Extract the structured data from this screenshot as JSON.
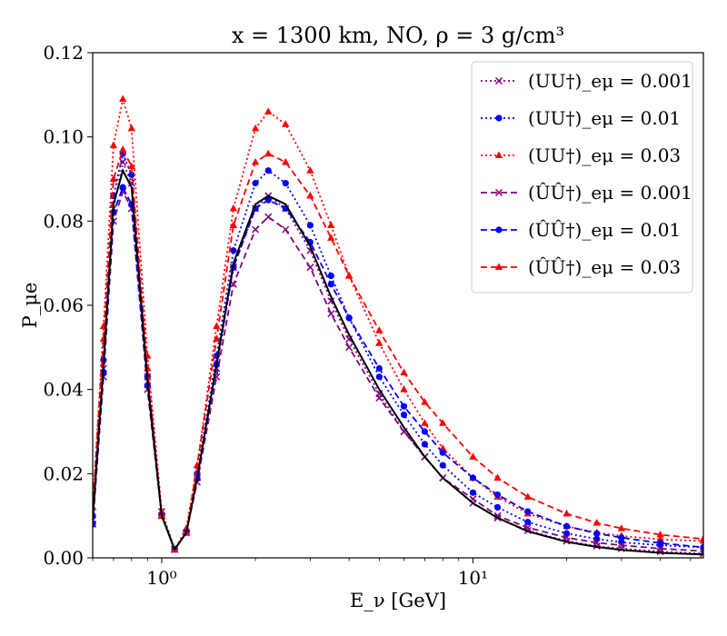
{
  "chart_data": {
    "type": "line",
    "title": "x = 1300 km, NO, ρ = 3 g/cm³",
    "xlabel": "E_ν [GeV]",
    "ylabel": "P_μe",
    "xscale": "log",
    "xlim": [
      0.6,
      55
    ],
    "ylim": [
      0,
      0.12
    ],
    "yticks": [
      0.0,
      0.02,
      0.04,
      0.06,
      0.08,
      0.1,
      0.12
    ],
    "ytick_labels": [
      "0.00",
      "0.02",
      "0.04",
      "0.06",
      "0.08",
      "0.10",
      "0.12"
    ],
    "xticks": [
      1,
      10
    ],
    "xtick_labels": [
      "10⁰",
      "10¹"
    ],
    "grid": false,
    "legend_position": "top-right",
    "colors": {
      "purple": "#800080",
      "blue": "#0000ff",
      "red": "#ff0000",
      "black": "#000000"
    },
    "series": [
      {
        "name": "(UU†)_eμ = 0.001",
        "color": "#800080",
        "linestyle": "dotted",
        "marker": "x",
        "points": [
          [
            0.6,
            0.009
          ],
          [
            0.65,
            0.045
          ],
          [
            0.7,
            0.083
          ],
          [
            0.75,
            0.094
          ],
          [
            0.8,
            0.089
          ],
          [
            0.9,
            0.043
          ],
          [
            1.0,
            0.011
          ],
          [
            1.1,
            0.002
          ],
          [
            1.2,
            0.006
          ],
          [
            1.3,
            0.019
          ],
          [
            1.5,
            0.045
          ],
          [
            1.7,
            0.069
          ],
          [
            2.0,
            0.083
          ],
          [
            2.2,
            0.086
          ],
          [
            2.5,
            0.083
          ],
          [
            3.0,
            0.073
          ],
          [
            3.5,
            0.061
          ],
          [
            4.0,
            0.052
          ],
          [
            5.0,
            0.039
          ],
          [
            6.0,
            0.03
          ],
          [
            7.0,
            0.024
          ],
          [
            8.0,
            0.019
          ],
          [
            10.0,
            0.013
          ],
          [
            12.0,
            0.0095
          ],
          [
            15.0,
            0.0065
          ],
          [
            20.0,
            0.004
          ],
          [
            25.0,
            0.0028
          ],
          [
            30.0,
            0.0022
          ],
          [
            40.0,
            0.0015
          ],
          [
            55.0,
            0.001
          ]
        ]
      },
      {
        "name": "(UU†)_eμ = 0.01",
        "color": "#0000ff",
        "linestyle": "dotted",
        "marker": "o",
        "points": [
          [
            0.6,
            0.01
          ],
          [
            0.65,
            0.047
          ],
          [
            0.7,
            0.086
          ],
          [
            0.75,
            0.096
          ],
          [
            0.8,
            0.091
          ],
          [
            0.9,
            0.043
          ],
          [
            1.0,
            0.01
          ],
          [
            1.1,
            0.002
          ],
          [
            1.2,
            0.006
          ],
          [
            1.3,
            0.02
          ],
          [
            1.5,
            0.048
          ],
          [
            1.7,
            0.073
          ],
          [
            2.0,
            0.089
          ],
          [
            2.2,
            0.092
          ],
          [
            2.5,
            0.089
          ],
          [
            3.0,
            0.079
          ],
          [
            3.5,
            0.067
          ],
          [
            4.0,
            0.057
          ],
          [
            5.0,
            0.043
          ],
          [
            6.0,
            0.034
          ],
          [
            7.0,
            0.027
          ],
          [
            8.0,
            0.022
          ],
          [
            10.0,
            0.0155
          ],
          [
            12.0,
            0.012
          ],
          [
            15.0,
            0.0085
          ],
          [
            20.0,
            0.0058
          ],
          [
            25.0,
            0.0045
          ],
          [
            30.0,
            0.0037
          ],
          [
            40.0,
            0.003
          ],
          [
            55.0,
            0.0025
          ]
        ]
      },
      {
        "name": "(UU†)_eμ = 0.03",
        "color": "#ff0000",
        "linestyle": "dotted",
        "marker": "^",
        "points": [
          [
            0.6,
            0.012
          ],
          [
            0.65,
            0.055
          ],
          [
            0.7,
            0.098
          ],
          [
            0.75,
            0.109
          ],
          [
            0.8,
            0.102
          ],
          [
            0.9,
            0.048
          ],
          [
            1.0,
            0.011
          ],
          [
            1.1,
            0.002
          ],
          [
            1.2,
            0.007
          ],
          [
            1.3,
            0.022
          ],
          [
            1.5,
            0.055
          ],
          [
            1.7,
            0.083
          ],
          [
            2.0,
            0.102
          ],
          [
            2.2,
            0.106
          ],
          [
            2.5,
            0.103
          ],
          [
            3.0,
            0.092
          ],
          [
            3.5,
            0.079
          ],
          [
            4.0,
            0.067
          ],
          [
            5.0,
            0.051
          ],
          [
            6.0,
            0.04
          ],
          [
            7.0,
            0.032
          ],
          [
            8.0,
            0.026
          ],
          [
            10.0,
            0.019
          ],
          [
            12.0,
            0.0145
          ],
          [
            15.0,
            0.0105
          ],
          [
            20.0,
            0.0075
          ],
          [
            25.0,
            0.006
          ],
          [
            30.0,
            0.0052
          ],
          [
            40.0,
            0.0044
          ],
          [
            55.0,
            0.004
          ]
        ]
      },
      {
        "name": "(ÛÛ†)_eμ = 0.001",
        "color": "#800080",
        "linestyle": "dashed",
        "marker": "x",
        "points": [
          [
            0.6,
            0.008
          ],
          [
            0.65,
            0.043
          ],
          [
            0.7,
            0.08
          ],
          [
            0.75,
            0.087
          ],
          [
            0.8,
            0.083
          ],
          [
            0.9,
            0.04
          ],
          [
            1.0,
            0.01
          ],
          [
            1.1,
            0.002
          ],
          [
            1.2,
            0.006
          ],
          [
            1.3,
            0.018
          ],
          [
            1.5,
            0.043
          ],
          [
            1.7,
            0.065
          ],
          [
            2.0,
            0.078
          ],
          [
            2.2,
            0.081
          ],
          [
            2.5,
            0.078
          ],
          [
            3.0,
            0.069
          ],
          [
            3.5,
            0.058
          ],
          [
            4.0,
            0.05
          ],
          [
            5.0,
            0.038
          ],
          [
            6.0,
            0.03
          ],
          [
            7.0,
            0.024
          ],
          [
            8.0,
            0.019
          ],
          [
            10.0,
            0.014
          ],
          [
            12.0,
            0.01
          ],
          [
            15.0,
            0.0072
          ],
          [
            20.0,
            0.0048
          ],
          [
            25.0,
            0.0036
          ],
          [
            30.0,
            0.003
          ],
          [
            40.0,
            0.0022
          ],
          [
            55.0,
            0.0016
          ]
        ]
      },
      {
        "name": "(ÛÛ†)_eμ = 0.01",
        "color": "#0000ff",
        "linestyle": "dashed",
        "marker": "o",
        "points": [
          [
            0.6,
            0.008
          ],
          [
            0.65,
            0.044
          ],
          [
            0.7,
            0.082
          ],
          [
            0.75,
            0.088
          ],
          [
            0.8,
            0.084
          ],
          [
            0.9,
            0.041
          ],
          [
            1.0,
            0.01
          ],
          [
            1.1,
            0.002
          ],
          [
            1.2,
            0.006
          ],
          [
            1.3,
            0.019
          ],
          [
            1.5,
            0.046
          ],
          [
            1.7,
            0.069
          ],
          [
            2.0,
            0.083
          ],
          [
            2.2,
            0.085
          ],
          [
            2.5,
            0.083
          ],
          [
            3.0,
            0.075
          ],
          [
            3.5,
            0.065
          ],
          [
            4.0,
            0.057
          ],
          [
            5.0,
            0.045
          ],
          [
            6.0,
            0.036
          ],
          [
            7.0,
            0.03
          ],
          [
            8.0,
            0.025
          ],
          [
            10.0,
            0.019
          ],
          [
            12.0,
            0.015
          ],
          [
            15.0,
            0.011
          ],
          [
            20.0,
            0.0075
          ],
          [
            25.0,
            0.0058
          ],
          [
            30.0,
            0.0048
          ],
          [
            40.0,
            0.0035
          ],
          [
            55.0,
            0.0025
          ]
        ]
      },
      {
        "name": "(ÛÛ†)_eμ = 0.03",
        "color": "#ff0000",
        "linestyle": "dashed",
        "marker": "^",
        "points": [
          [
            0.6,
            0.012
          ],
          [
            0.65,
            0.052
          ],
          [
            0.7,
            0.09
          ],
          [
            0.75,
            0.097
          ],
          [
            0.8,
            0.093
          ],
          [
            0.9,
            0.045
          ],
          [
            1.0,
            0.01
          ],
          [
            1.1,
            0.002
          ],
          [
            1.2,
            0.006
          ],
          [
            1.3,
            0.022
          ],
          [
            1.5,
            0.052
          ],
          [
            1.7,
            0.079
          ],
          [
            2.0,
            0.094
          ],
          [
            2.2,
            0.096
          ],
          [
            2.5,
            0.094
          ],
          [
            3.0,
            0.086
          ],
          [
            3.5,
            0.076
          ],
          [
            4.0,
            0.067
          ],
          [
            5.0,
            0.054
          ],
          [
            6.0,
            0.044
          ],
          [
            7.0,
            0.037
          ],
          [
            8.0,
            0.032
          ],
          [
            10.0,
            0.024
          ],
          [
            12.0,
            0.019
          ],
          [
            15.0,
            0.0145
          ],
          [
            20.0,
            0.0105
          ],
          [
            25.0,
            0.0083
          ],
          [
            30.0,
            0.007
          ],
          [
            40.0,
            0.0055
          ],
          [
            55.0,
            0.0045
          ]
        ]
      },
      {
        "name": "",
        "color": "#000000",
        "linestyle": "solid",
        "marker": "none",
        "points": [
          [
            0.6,
            0.009
          ],
          [
            0.65,
            0.046
          ],
          [
            0.7,
            0.084
          ],
          [
            0.75,
            0.092
          ],
          [
            0.8,
            0.088
          ],
          [
            0.9,
            0.042
          ],
          [
            1.0,
            0.01
          ],
          [
            1.1,
            0.002
          ],
          [
            1.2,
            0.006
          ],
          [
            1.3,
            0.019
          ],
          [
            1.5,
            0.046
          ],
          [
            1.7,
            0.07
          ],
          [
            2.0,
            0.084
          ],
          [
            2.2,
            0.086
          ],
          [
            2.5,
            0.084
          ],
          [
            3.0,
            0.074
          ],
          [
            3.5,
            0.062
          ],
          [
            4.0,
            0.053
          ],
          [
            5.0,
            0.04
          ],
          [
            6.0,
            0.031
          ],
          [
            7.0,
            0.024
          ],
          [
            8.0,
            0.019
          ],
          [
            10.0,
            0.013
          ],
          [
            12.0,
            0.0095
          ],
          [
            15.0,
            0.0063
          ],
          [
            20.0,
            0.0038
          ],
          [
            25.0,
            0.0026
          ],
          [
            30.0,
            0.0019
          ],
          [
            40.0,
            0.0012
          ],
          [
            55.0,
            0.0008
          ]
        ]
      }
    ]
  }
}
